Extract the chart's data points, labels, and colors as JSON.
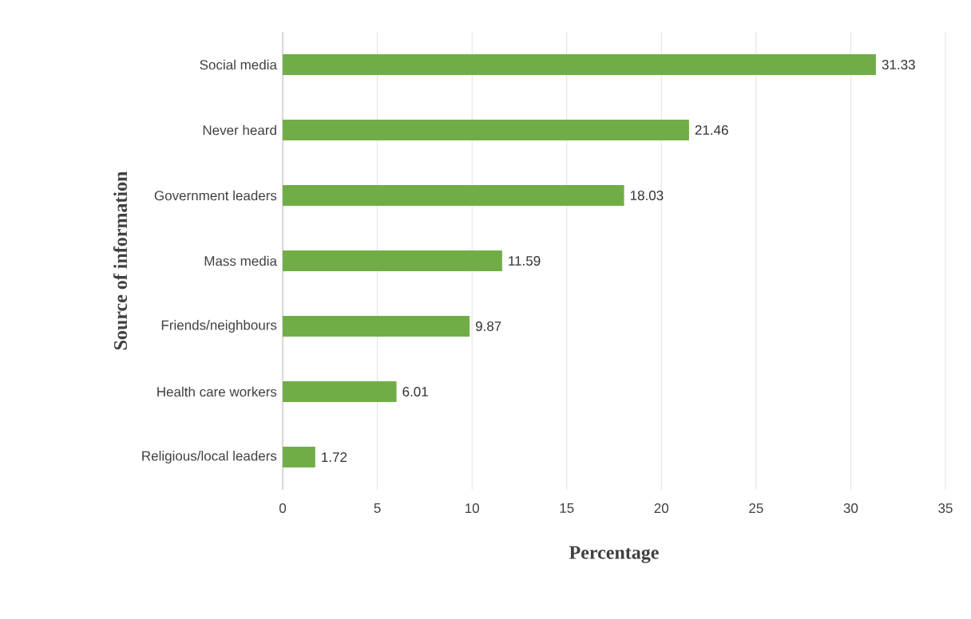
{
  "chart_data": {
    "type": "bar",
    "orientation": "horizontal",
    "xlabel": "Percentage",
    "ylabel": "Source of information",
    "categories": [
      "Social media",
      "Never heard",
      "Government leaders",
      "Mass media",
      "Friends/neighbours",
      "Health care workers",
      "Religious/local leaders"
    ],
    "values": [
      31.33,
      21.46,
      18.03,
      11.59,
      9.87,
      6.01,
      1.72
    ],
    "color": "#70ad47",
    "xlim": [
      0,
      35
    ],
    "xticks": [
      0,
      5,
      10,
      15,
      20,
      25,
      30,
      35
    ],
    "grid": "x",
    "data_labels": true
  }
}
